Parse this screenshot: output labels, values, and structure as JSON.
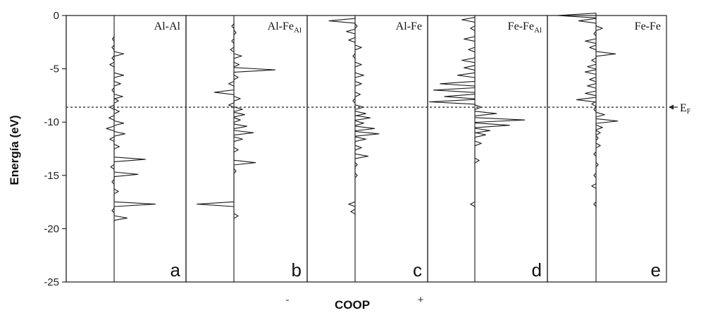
{
  "chart_data": {
    "type": "line",
    "ylabel": "Energía (eV)",
    "xlabel": "COOP",
    "x_negative_label": "-",
    "x_positive_label": "+",
    "ylim": [
      -25,
      0
    ],
    "yticks": [
      0,
      -5,
      -10,
      -15,
      -20,
      -25
    ],
    "fermi_level": -8.6,
    "fermi_label": {
      "main": "E",
      "sub": "F"
    },
    "panels": [
      {
        "id": "a",
        "title": "Al-Al",
        "title_sub": "",
        "letter": "a",
        "energy": [
          -2.2,
          -3.0,
          -3.6,
          -4.0,
          -4.6,
          -5.6,
          -6.4,
          -7.0,
          -7.6,
          -8.0,
          -8.6,
          -9.0,
          -9.6,
          -10.1,
          -10.6,
          -11.1,
          -11.6,
          -12.3,
          -13.5,
          -14.2,
          -14.9,
          -15.6,
          -16.5,
          -17.7,
          -18.3,
          -19.0
        ],
        "coop": [
          -0.04,
          -0.05,
          0.22,
          -0.05,
          -0.1,
          0.22,
          0.15,
          -0.05,
          0.2,
          0.1,
          -0.1,
          0.12,
          -0.12,
          0.22,
          -0.18,
          0.25,
          -0.1,
          0.12,
          0.72,
          -0.08,
          0.55,
          -0.05,
          0.1,
          0.95,
          -0.05,
          0.3
        ]
      },
      {
        "id": "b",
        "title": "Al-Fe",
        "title_sub": "Al",
        "letter": "b",
        "energy": [
          -1.0,
          -1.6,
          -2.4,
          -3.2,
          -3.8,
          -4.6,
          -5.1,
          -5.8,
          -6.4,
          -7.2,
          -7.8,
          -8.4,
          -8.8,
          -9.3,
          -9.8,
          -10.4,
          -11.0,
          -11.6,
          -12.6,
          -13.8,
          -14.6,
          -17.7,
          -18.8
        ],
        "coop": [
          -0.05,
          0.05,
          -0.05,
          -0.08,
          0.18,
          0.12,
          0.95,
          0.1,
          -0.12,
          -0.45,
          0.15,
          -0.12,
          0.2,
          0.25,
          0.15,
          0.3,
          0.45,
          0.2,
          0.1,
          0.5,
          0.05,
          -0.85,
          0.1
        ]
      },
      {
        "id": "c",
        "title": "Al-Fe",
        "title_sub": "",
        "letter": "c",
        "energy": [
          -0.5,
          -1.0,
          -1.5,
          -2.3,
          -3.0,
          -3.8,
          -4.6,
          -5.6,
          -6.4,
          -7.4,
          -8.0,
          -8.6,
          -9.2,
          -9.6,
          -10.1,
          -10.6,
          -11.1,
          -11.6,
          -12.4,
          -13.2,
          -14.0,
          -15.0,
          -17.7,
          -18.4
        ],
        "coop": [
          -0.6,
          0.05,
          -0.2,
          -0.15,
          0.15,
          -0.05,
          0.15,
          0.2,
          0.15,
          0.12,
          -0.05,
          0.2,
          0.25,
          0.35,
          0.2,
          0.45,
          0.55,
          0.25,
          0.15,
          0.3,
          0.05,
          0.05,
          -0.15,
          -0.1
        ]
      },
      {
        "id": "d",
        "title": "Fe-Fe",
        "title_sub": "Al",
        "letter": "d",
        "energy": [
          -0.4,
          -1.2,
          -2.2,
          -3.2,
          -4.2,
          -4.9,
          -5.6,
          -6.4,
          -7.0,
          -7.6,
          -8.1,
          -8.6,
          -9.2,
          -9.8,
          -10.3,
          -10.8,
          -11.2,
          -12.0,
          -13.6,
          -17.7
        ],
        "coop": [
          -0.3,
          -0.1,
          -0.25,
          -0.15,
          -0.3,
          -0.25,
          -0.4,
          -0.8,
          -0.95,
          -0.7,
          -1.05,
          0.15,
          0.5,
          1.15,
          0.8,
          0.35,
          0.25,
          0.15,
          0.1,
          -0.1
        ]
      },
      {
        "id": "e",
        "title": "Fe-Fe",
        "title_sub": "",
        "letter": "e",
        "energy": [
          0.0,
          -0.5,
          -1.2,
          -1.7,
          -2.4,
          -3.0,
          -3.6,
          -4.2,
          -4.8,
          -5.3,
          -6.0,
          -6.6,
          -7.3,
          -7.9,
          -8.3,
          -8.8,
          -9.3,
          -9.9,
          -10.5,
          -11.0,
          -11.5,
          -12.2,
          -13.0,
          -14.0,
          -15.0,
          -16.0,
          -17.7
        ],
        "coop": [
          -0.9,
          -0.4,
          0.15,
          -0.05,
          -0.25,
          -0.15,
          0.45,
          -0.1,
          -0.2,
          -0.25,
          -0.15,
          -0.2,
          -0.25,
          -0.45,
          -0.1,
          -0.05,
          0.2,
          0.5,
          0.15,
          0.1,
          0.05,
          0.1,
          -0.05,
          0.05,
          -0.05,
          -0.1,
          -0.05
        ]
      }
    ]
  }
}
